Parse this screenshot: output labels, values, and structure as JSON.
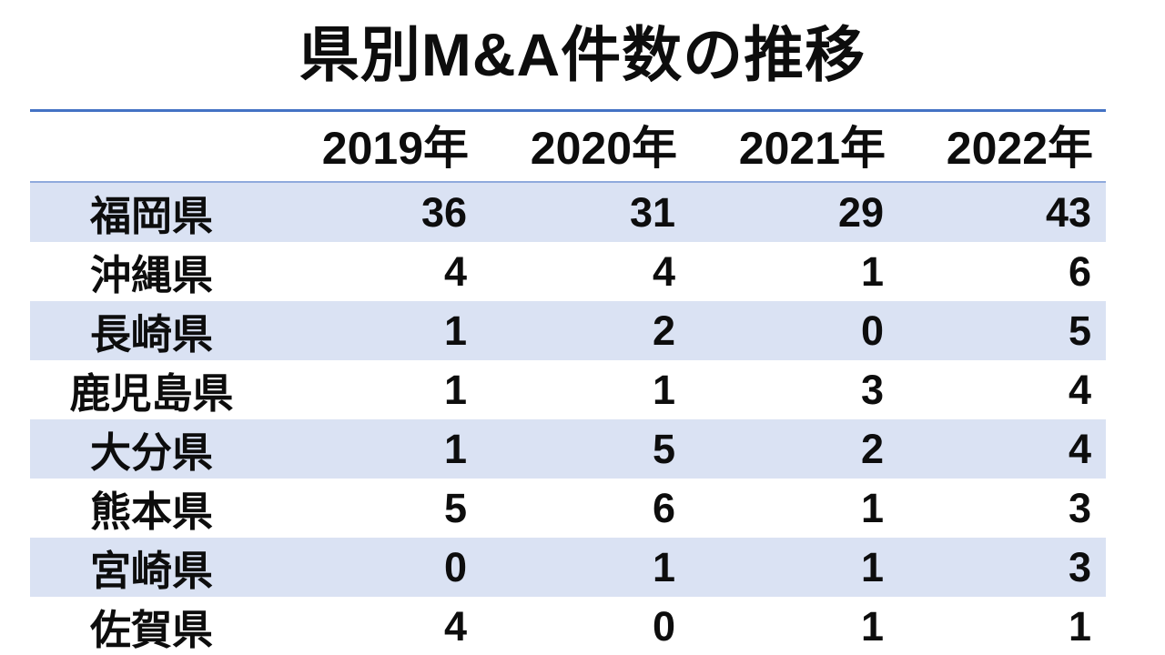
{
  "title": "県別M&A件数の推移",
  "chart_data": {
    "type": "table",
    "title": "県別M&A件数の推移",
    "categories": [
      "2019年",
      "2020年",
      "2021年",
      "2022年"
    ],
    "row_header_label": "",
    "series": [
      {
        "name": "福岡県",
        "values": [
          36,
          31,
          29,
          43
        ]
      },
      {
        "name": "沖縄県",
        "values": [
          4,
          4,
          1,
          6
        ]
      },
      {
        "name": "長崎県",
        "values": [
          1,
          2,
          0,
          5
        ]
      },
      {
        "name": "鹿児島県",
        "values": [
          1,
          1,
          3,
          4
        ]
      },
      {
        "name": "大分県",
        "values": [
          1,
          5,
          2,
          4
        ]
      },
      {
        "name": "熊本県",
        "values": [
          5,
          6,
          1,
          3
        ]
      },
      {
        "name": "宮崎県",
        "values": [
          0,
          1,
          1,
          3
        ]
      },
      {
        "name": "佐賀県",
        "values": [
          4,
          0,
          1,
          1
        ]
      }
    ],
    "layout_hints": {
      "banded_rows": true,
      "banded_row_indexes_filled": [
        0,
        2,
        4,
        6
      ],
      "value_alignment": "right",
      "header_alignment": "right",
      "row_label_alignment": "center",
      "grid": "horizontal-borders-only",
      "legend_position": "none"
    }
  },
  "colors": {
    "accent_border": "#4472C4",
    "light_border": "#8FAADC",
    "band_fill": "#DAE2F3",
    "text": "#0D0D0D",
    "background": "#FFFFFF"
  }
}
